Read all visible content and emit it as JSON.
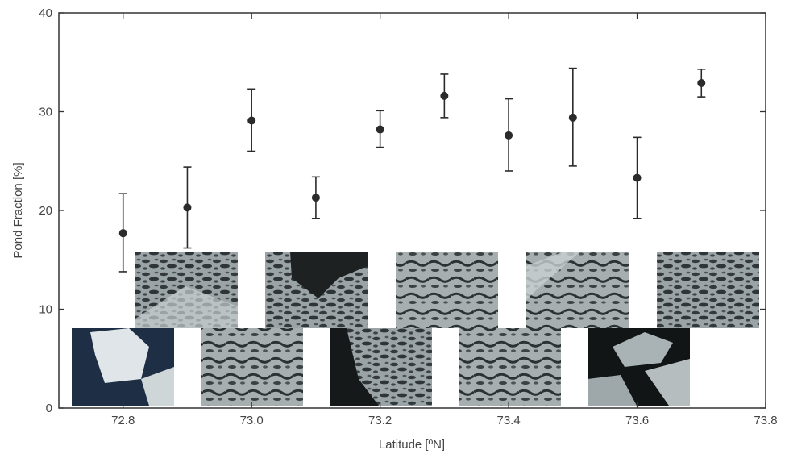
{
  "chart_data": {
    "type": "scatter",
    "xlabel": "Latitude [ºN]",
    "ylabel": "Pond Fraction [%]",
    "xlim": [
      72.7,
      73.8
    ],
    "ylim": [
      0,
      40
    ],
    "x_ticks": [
      "72.8",
      "73.0",
      "73.2",
      "73.4",
      "73.6",
      "73.8"
    ],
    "y_ticks": [
      "0",
      "10",
      "20",
      "30",
      "40"
    ],
    "grid": false,
    "legend": "none",
    "marker_color": "#2b2b2b",
    "points": [
      {
        "x": 72.8,
        "y": 17.7,
        "err_low": 13.8,
        "err_high": 21.7
      },
      {
        "x": 72.9,
        "y": 20.3,
        "err_low": 16.2,
        "err_high": 24.4
      },
      {
        "x": 73.0,
        "y": 29.1,
        "err_low": 26.0,
        "err_high": 32.3
      },
      {
        "x": 73.1,
        "y": 21.3,
        "err_low": 19.2,
        "err_high": 23.4
      },
      {
        "x": 73.2,
        "y": 28.2,
        "err_low": 26.4,
        "err_high": 30.1
      },
      {
        "x": 73.3,
        "y": 31.6,
        "err_low": 29.4,
        "err_high": 33.8
      },
      {
        "x": 73.4,
        "y": 27.6,
        "err_low": 24.0,
        "err_high": 31.3
      },
      {
        "x": 73.5,
        "y": 29.4,
        "err_low": 24.5,
        "err_high": 34.4
      },
      {
        "x": 73.6,
        "y": 23.3,
        "err_low": 19.2,
        "err_high": 27.4
      },
      {
        "x": 73.7,
        "y": 32.9,
        "err_low": 31.5,
        "err_high": 34.3
      }
    ]
  },
  "thumbnails": [
    {
      "name": "thumb-72-8",
      "scene": "open-water-ice-floe"
    },
    {
      "name": "thumb-72-9",
      "scene": "melt-ponds"
    },
    {
      "name": "thumb-73-0",
      "scene": "melt-ponds-water-edge"
    },
    {
      "name": "thumb-73-1",
      "scene": "melt-ponds-leads"
    },
    {
      "name": "thumb-73-2",
      "scene": "melt-ponds"
    },
    {
      "name": "thumb-73-3",
      "scene": "melt-ponds-leads"
    },
    {
      "name": "thumb-73-4",
      "scene": "melt-ponds-ridges"
    },
    {
      "name": "thumb-73-5",
      "scene": "melt-ponds-leads"
    },
    {
      "name": "thumb-73-6",
      "scene": "broken-floes-open-water"
    },
    {
      "name": "thumb-73-7",
      "scene": "melt-ponds-dense"
    }
  ]
}
